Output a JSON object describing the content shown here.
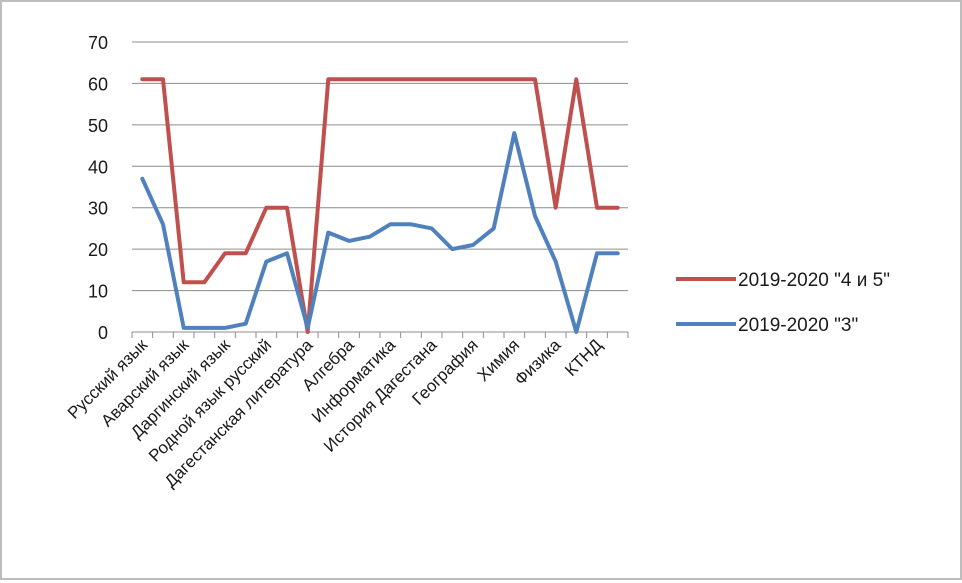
{
  "chart_data": {
    "type": "line",
    "ylim": [
      0,
      70
    ],
    "yticks": [
      0,
      10,
      20,
      30,
      40,
      50,
      60,
      70
    ],
    "grid": true,
    "legend_position": "right",
    "category_labels": [
      "Русский язык",
      "Аварский язык",
      "Даргинский язык",
      "Родной язык русский",
      "Дагестанская литература",
      "Алгебра",
      "Информатика",
      "История Дагестана",
      "География",
      "Химия",
      "Физика",
      "КТНД"
    ],
    "series": [
      {
        "name": "2019-2020  \"4 и 5\"",
        "color": "#c0504d",
        "values": [
          61,
          61,
          12,
          12,
          19,
          19,
          30,
          30,
          0,
          61,
          61,
          61,
          61,
          61,
          61,
          61,
          61,
          61,
          61,
          61,
          30,
          61,
          30,
          30
        ]
      },
      {
        "name": "2019-2020  \"3\"",
        "color": "#4f81bd",
        "values": [
          37,
          26,
          1,
          1,
          1,
          2,
          17,
          19,
          1,
          24,
          22,
          23,
          26,
          26,
          25,
          20,
          21,
          25,
          48,
          28,
          17,
          0,
          19,
          19
        ]
      }
    ]
  }
}
